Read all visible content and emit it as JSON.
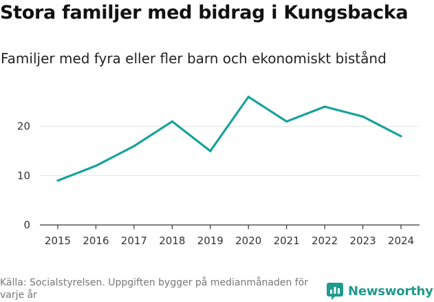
{
  "header": {
    "title": "Stora familjer med bidrag i Kungsbacka",
    "subtitle": "Familjer med fyra eller fler barn och ekonomiskt bistånd"
  },
  "footer": {
    "source": "Källa: Socialstyrelsen. Uppgiften bygger på medianmånaden för varje år",
    "brand": "Newsworthy"
  },
  "colors": {
    "line": "#17a398",
    "brand": "#1f9a8e",
    "grid": "#e0e0e0"
  },
  "chart_data": {
    "type": "line",
    "title": "Stora familjer med bidrag i Kungsbacka",
    "subtitle": "Familjer med fyra eller fler barn och ekonomiskt bistånd",
    "xlabel": "",
    "ylabel": "",
    "categories": [
      "2015",
      "2016",
      "2017",
      "2018",
      "2019",
      "2020",
      "2021",
      "2022",
      "2023",
      "2024"
    ],
    "series": [
      {
        "name": "Familjer",
        "values": [
          9,
          12,
          16,
          21,
          15,
          26,
          21,
          24,
          22,
          18
        ]
      }
    ],
    "y_ticks": [
      0,
      10,
      20
    ],
    "ylim": [
      0,
      27.5
    ],
    "grid": true
  }
}
